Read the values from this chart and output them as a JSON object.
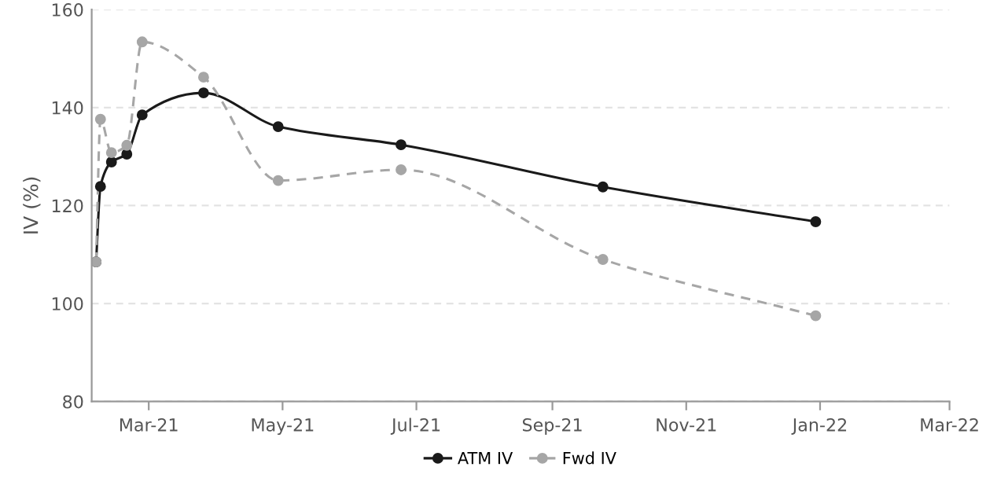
{
  "chart_data": {
    "type": "line",
    "ylabel": "IV (%)",
    "x": [
      "2021-02-05",
      "2021-02-07",
      "2021-02-12",
      "2021-02-19",
      "2021-02-26",
      "2021-03-26",
      "2021-04-29",
      "2021-06-24",
      "2021-09-24",
      "2021-12-30"
    ],
    "series": [
      {
        "name": "ATM IV",
        "color": "#1a1a1a",
        "line_style": "solid",
        "values": [
          108.5,
          123.9,
          128.9,
          130.5,
          138.5,
          143.0,
          136.1,
          132.4,
          123.8,
          116.7
        ]
      },
      {
        "name": "Fwd IV",
        "color": "#a6a6a6",
        "line_style": "dashed",
        "values": [
          108.5,
          137.6,
          130.8,
          132.3,
          153.4,
          146.2,
          125.1,
          127.3,
          109.0,
          97.5
        ]
      }
    ],
    "marker": "circle",
    "xlim": [
      "2021-02-03",
      "2022-03-01"
    ],
    "xticks": [
      {
        "value": "2021-03-01",
        "label": "Mar-21"
      },
      {
        "value": "2021-05-01",
        "label": "May-21"
      },
      {
        "value": "2021-07-01",
        "label": "Jul-21"
      },
      {
        "value": "2021-09-01",
        "label": "Sep-21"
      },
      {
        "value": "2021-11-01",
        "label": "Nov-21"
      },
      {
        "value": "2022-01-01",
        "label": "Jan-22"
      },
      {
        "value": "2022-03-01",
        "label": "Mar-22"
      }
    ],
    "ylim": [
      80,
      160
    ],
    "yticks": [
      80,
      100,
      120,
      140,
      160
    ],
    "grid": "y",
    "legend": "bottom"
  }
}
